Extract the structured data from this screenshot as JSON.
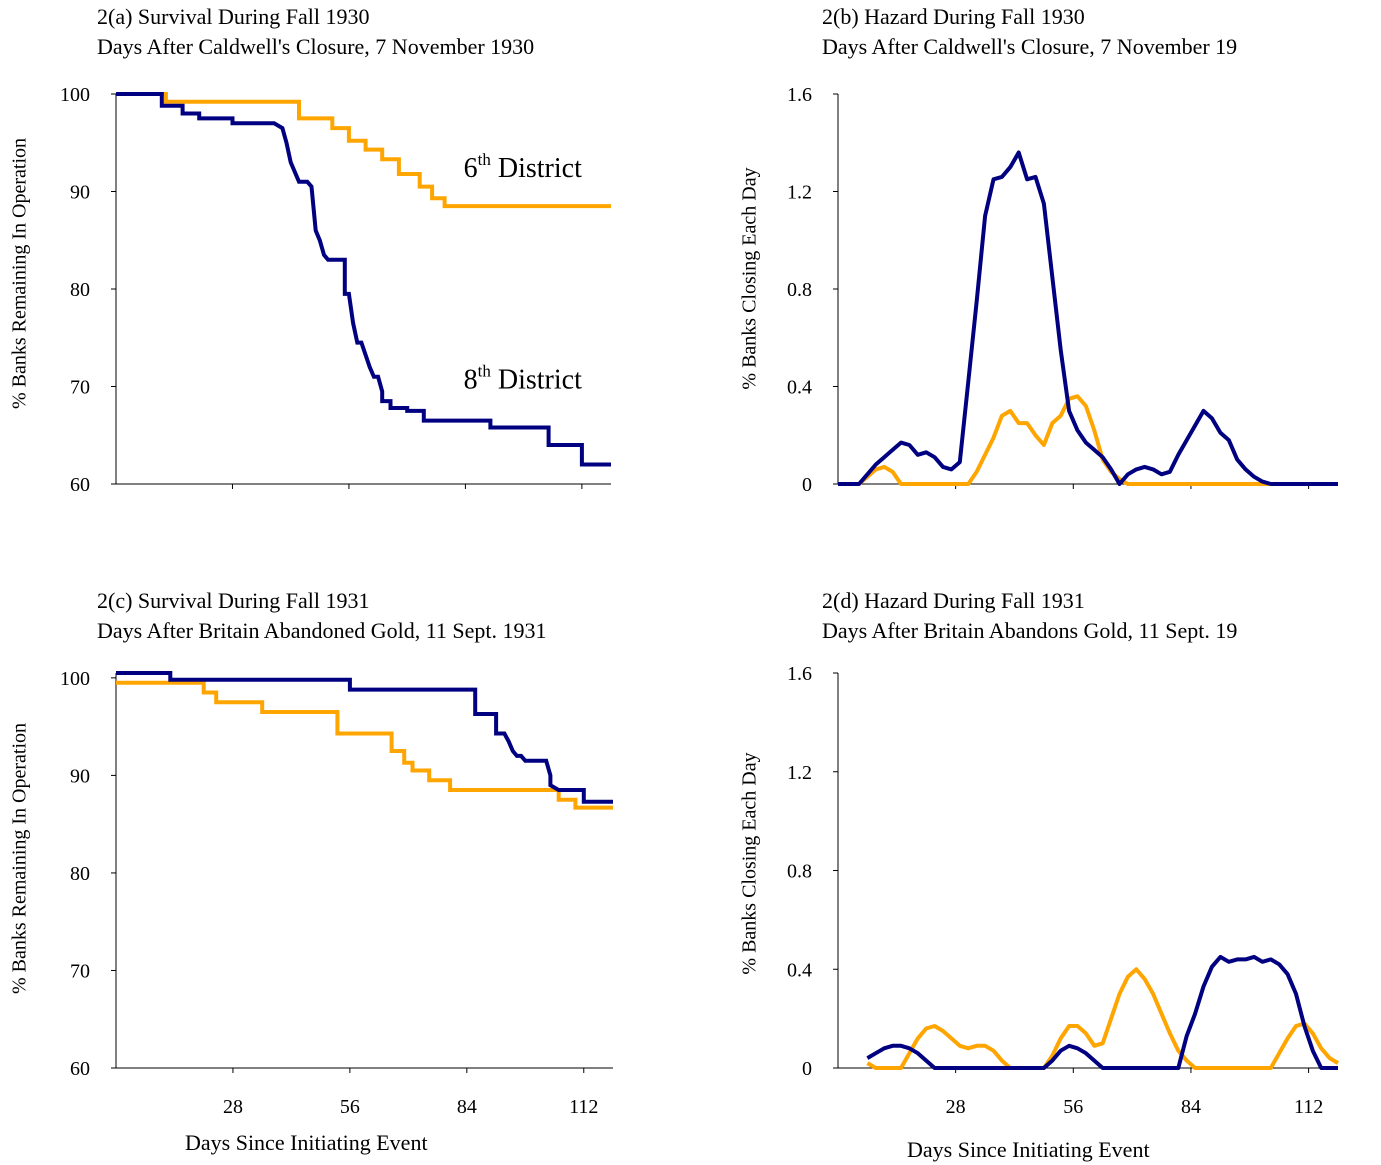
{
  "colors": {
    "district8": "#000080",
    "district6": "#FFA500",
    "axis": "#000000"
  },
  "chart_data": [
    {
      "id": "a",
      "type": "line",
      "title": "2(a) Survival During Fall 1930",
      "subtitle": "Days After Caldwell's Closure, 7 November 1930",
      "ylabel": "%  Banks Remaining In Operation",
      "xlabel": "",
      "xlim": [
        0,
        119
      ],
      "ylim": [
        60,
        100
      ],
      "yticks": [
        "60",
        "70",
        "80",
        "90",
        "100"
      ],
      "xticks": [],
      "step": true,
      "annotations": [
        {
          "base": "6",
          "sup": "th",
          "rest": " District",
          "x": 112,
          "y": 91.5
        },
        {
          "base": "8",
          "sup": "th",
          "rest": " District",
          "x": 112,
          "y": 69.8
        }
      ],
      "series": [
        {
          "key": "district8",
          "x": [
            0,
            11,
            11,
            16,
            16,
            20,
            20,
            28,
            28,
            38,
            40,
            41,
            42,
            44,
            46,
            47,
            48,
            49,
            50,
            51,
            52,
            55,
            55,
            56,
            57,
            58,
            59,
            61,
            61,
            62,
            63,
            64,
            64,
            66,
            66,
            70,
            70,
            74,
            74,
            83,
            83,
            90,
            90,
            104,
            104,
            112,
            112,
            119
          ],
          "y": [
            100,
            100,
            98.8,
            98.8,
            98,
            98,
            97.5,
            97.5,
            97,
            97,
            96.5,
            95,
            93,
            91,
            91,
            90.5,
            86,
            85,
            83.5,
            83,
            83,
            83,
            79.5,
            79.5,
            76.5,
            74.5,
            74.5,
            72,
            72,
            71,
            71,
            69.5,
            68.5,
            68.5,
            67.8,
            67.8,
            67.5,
            67.5,
            66.5,
            66.5,
            66.5,
            66.5,
            65.8,
            65.8,
            64,
            64,
            62,
            62
          ]
        },
        {
          "key": "district6",
          "x": [
            0,
            12,
            12,
            44,
            44,
            52,
            52,
            56,
            56,
            60,
            60,
            64,
            64,
            68,
            68,
            73,
            73,
            76,
            76,
            79,
            79,
            84,
            84,
            119
          ],
          "y": [
            100,
            100,
            99.2,
            99.2,
            97.5,
            97.5,
            96.5,
            96.5,
            95.2,
            95.2,
            94.3,
            94.3,
            93.3,
            93.3,
            91.8,
            91.8,
            90.5,
            90.5,
            89.3,
            89.3,
            88.5,
            88.5,
            88.5,
            88.5
          ]
        }
      ]
    },
    {
      "id": "b",
      "type": "line",
      "title": "2(b) Hazard During Fall 1930",
      "subtitle": "Days After Caldwell's Closure, 7 November 19",
      "ylabel": "%  Banks Closing Each Day",
      "xlabel": "",
      "xlim": [
        0,
        119
      ],
      "ylim": [
        0,
        1.6
      ],
      "yticks": [
        "0",
        "0.4",
        "0.8",
        "1.2",
        "1.6"
      ],
      "xticks": [],
      "step": false,
      "series": [
        {
          "key": "district8",
          "x": [
            0,
            5,
            7,
            9,
            11,
            13,
            15,
            17,
            19,
            21,
            23,
            25,
            27,
            29,
            31,
            33,
            35,
            37,
            39,
            41,
            43,
            45,
            47,
            49,
            51,
            53,
            55,
            57,
            59,
            61,
            63,
            65,
            67,
            69,
            71,
            73,
            75,
            77,
            79,
            81,
            83,
            85,
            87,
            89,
            91,
            93,
            95,
            97,
            99,
            101,
            103,
            105,
            107,
            109,
            111,
            113,
            115,
            117,
            119
          ],
          "y": [
            0,
            0,
            0.04,
            0.08,
            0.11,
            0.14,
            0.17,
            0.16,
            0.12,
            0.13,
            0.11,
            0.07,
            0.06,
            0.09,
            0.42,
            0.75,
            1.1,
            1.25,
            1.26,
            1.3,
            1.36,
            1.25,
            1.26,
            1.15,
            0.85,
            0.55,
            0.3,
            0.22,
            0.17,
            0.14,
            0.11,
            0.06,
            0.0,
            0.04,
            0.06,
            0.07,
            0.06,
            0.04,
            0.05,
            0.12,
            0.18,
            0.24,
            0.3,
            0.27,
            0.21,
            0.18,
            0.1,
            0.06,
            0.03,
            0.01,
            0.0,
            0.0,
            0.0,
            0.0,
            0.0,
            0.0,
            0.0,
            0.0,
            0.0
          ]
        },
        {
          "key": "district6",
          "x": [
            0,
            5,
            7,
            9,
            11,
            13,
            15,
            17,
            19,
            21,
            23,
            25,
            27,
            29,
            31,
            33,
            35,
            37,
            39,
            41,
            43,
            45,
            47,
            49,
            51,
            53,
            55,
            57,
            59,
            61,
            63,
            65,
            67,
            69,
            71,
            73,
            75,
            77,
            79,
            81,
            83,
            85,
            87,
            89,
            91,
            93,
            95,
            97,
            99,
            101,
            103,
            105,
            107,
            109,
            111,
            113,
            115,
            117,
            119
          ],
          "y": [
            0,
            0,
            0.03,
            0.06,
            0.07,
            0.05,
            0.0,
            0.0,
            0.0,
            0.0,
            0.0,
            0.0,
            0.0,
            0.0,
            0.0,
            0.05,
            0.12,
            0.19,
            0.28,
            0.3,
            0.25,
            0.25,
            0.2,
            0.16,
            0.25,
            0.28,
            0.35,
            0.36,
            0.32,
            0.22,
            0.1,
            0.05,
            0.02,
            0.0,
            0.0,
            0.0,
            0.0,
            0.0,
            0.0,
            0.0,
            0.0,
            0.0,
            0.0,
            0.0,
            0.0,
            0.0,
            0.0,
            0.0,
            0.0,
            0.0,
            0.0,
            0.0,
            0.0,
            0.0,
            0.0,
            0.0,
            0.0,
            0.0,
            0.0
          ]
        }
      ]
    },
    {
      "id": "c",
      "type": "line",
      "title": "2(c) Survival During Fall 1931",
      "subtitle": "Days After Britain Abandoned Gold, 11 Sept. 1931",
      "ylabel": "%  Banks Remaining In Operation",
      "xlabel": "Days Since Initiating Event",
      "xlim": [
        0,
        119
      ],
      "ylim": [
        60,
        100.5
      ],
      "yticks": [
        "60",
        "70",
        "80",
        "90",
        "100"
      ],
      "xticks": [
        "28",
        "56",
        "84",
        "112"
      ],
      "step": true,
      "series": [
        {
          "key": "district8",
          "x": [
            0,
            13,
            13,
            56,
            56,
            86,
            86,
            91,
            91,
            93,
            94,
            95,
            96,
            97,
            98,
            99,
            100,
            102,
            103,
            104,
            104,
            106,
            107,
            109,
            109,
            112,
            112,
            119
          ],
          "y": [
            100.5,
            100.5,
            99.8,
            99.8,
            98.8,
            98.8,
            96.3,
            96.3,
            94.3,
            94.3,
            93.5,
            92.5,
            92,
            92,
            91.5,
            91.5,
            91.5,
            91.5,
            91.5,
            90,
            89,
            88.5,
            88.5,
            88.5,
            88.5,
            88.5,
            87.3,
            87.3
          ]
        },
        {
          "key": "district6",
          "x": [
            0,
            13,
            13,
            21,
            21,
            24,
            24,
            35,
            35,
            53,
            53,
            66,
            66,
            69,
            69,
            71,
            71,
            75,
            75,
            80,
            80,
            106,
            106,
            110,
            110,
            119
          ],
          "y": [
            99.5,
            99.5,
            99.5,
            99.5,
            98.5,
            98.5,
            97.5,
            97.5,
            96.5,
            96.5,
            94.3,
            94.3,
            92.5,
            92.5,
            91.3,
            91.3,
            90.5,
            90.5,
            89.5,
            89.5,
            88.5,
            88.5,
            87.5,
            87.5,
            86.7,
            86.7
          ]
        }
      ]
    },
    {
      "id": "d",
      "type": "line",
      "title": "2(d) Hazard During Fall 1931",
      "subtitle": "Days After Britain Abandons Gold, 11 Sept. 19",
      "ylabel": "%  Banks Closing Each Day",
      "xlabel": "Days Since Initiating Event",
      "xlim": [
        0,
        119
      ],
      "ylim": [
        0,
        1.6
      ],
      "yticks": [
        "0",
        "0.4",
        "0.8",
        "1.2",
        "1.6"
      ],
      "xticks": [
        "28",
        "56",
        "84",
        "112"
      ],
      "step": false,
      "series": [
        {
          "key": "district8",
          "x": [
            7,
            9,
            11,
            13,
            15,
            17,
            19,
            21,
            23,
            25,
            27,
            29,
            31,
            33,
            35,
            37,
            39,
            41,
            43,
            45,
            47,
            49,
            51,
            53,
            55,
            57,
            59,
            61,
            63,
            65,
            67,
            69,
            71,
            73,
            75,
            77,
            79,
            81,
            83,
            85,
            87,
            89,
            91,
            93,
            95,
            97,
            99,
            101,
            103,
            105,
            107,
            109,
            111,
            113,
            115,
            117,
            119
          ],
          "y": [
            0.04,
            0.06,
            0.08,
            0.09,
            0.09,
            0.08,
            0.06,
            0.03,
            0.0,
            0.0,
            0.0,
            0.0,
            0.0,
            0.0,
            0.0,
            0.0,
            0.0,
            0.0,
            0.0,
            0.0,
            0.0,
            0.0,
            0.03,
            0.07,
            0.09,
            0.08,
            0.06,
            0.03,
            0.0,
            0.0,
            0.0,
            0.0,
            0.0,
            0.0,
            0.0,
            0.0,
            0.0,
            0.0,
            0.13,
            0.22,
            0.33,
            0.41,
            0.45,
            0.43,
            0.44,
            0.44,
            0.45,
            0.43,
            0.44,
            0.42,
            0.38,
            0.3,
            0.17,
            0.07,
            0.0,
            0.0,
            0.0
          ]
        },
        {
          "key": "district6",
          "x": [
            7,
            9,
            11,
            13,
            15,
            17,
            19,
            21,
            23,
            25,
            27,
            29,
            31,
            33,
            35,
            37,
            39,
            41,
            43,
            45,
            47,
            49,
            51,
            53,
            55,
            57,
            59,
            61,
            63,
            65,
            67,
            69,
            71,
            73,
            75,
            77,
            79,
            81,
            83,
            85,
            87,
            89,
            91,
            93,
            95,
            97,
            99,
            101,
            103,
            105,
            107,
            109,
            111,
            113,
            115,
            117,
            119
          ],
          "y": [
            0.02,
            0.0,
            0.0,
            0.0,
            0.0,
            0.06,
            0.12,
            0.16,
            0.17,
            0.15,
            0.12,
            0.09,
            0.08,
            0.09,
            0.09,
            0.07,
            0.03,
            0.0,
            0.0,
            0.0,
            0.0,
            0.0,
            0.05,
            0.12,
            0.17,
            0.17,
            0.14,
            0.09,
            0.1,
            0.2,
            0.3,
            0.37,
            0.4,
            0.36,
            0.3,
            0.22,
            0.14,
            0.07,
            0.03,
            0.0,
            0.0,
            0.0,
            0.0,
            0.0,
            0.0,
            0.0,
            0.0,
            0.0,
            0.0,
            0.06,
            0.12,
            0.17,
            0.18,
            0.14,
            0.08,
            0.04,
            0.02
          ]
        }
      ]
    }
  ]
}
